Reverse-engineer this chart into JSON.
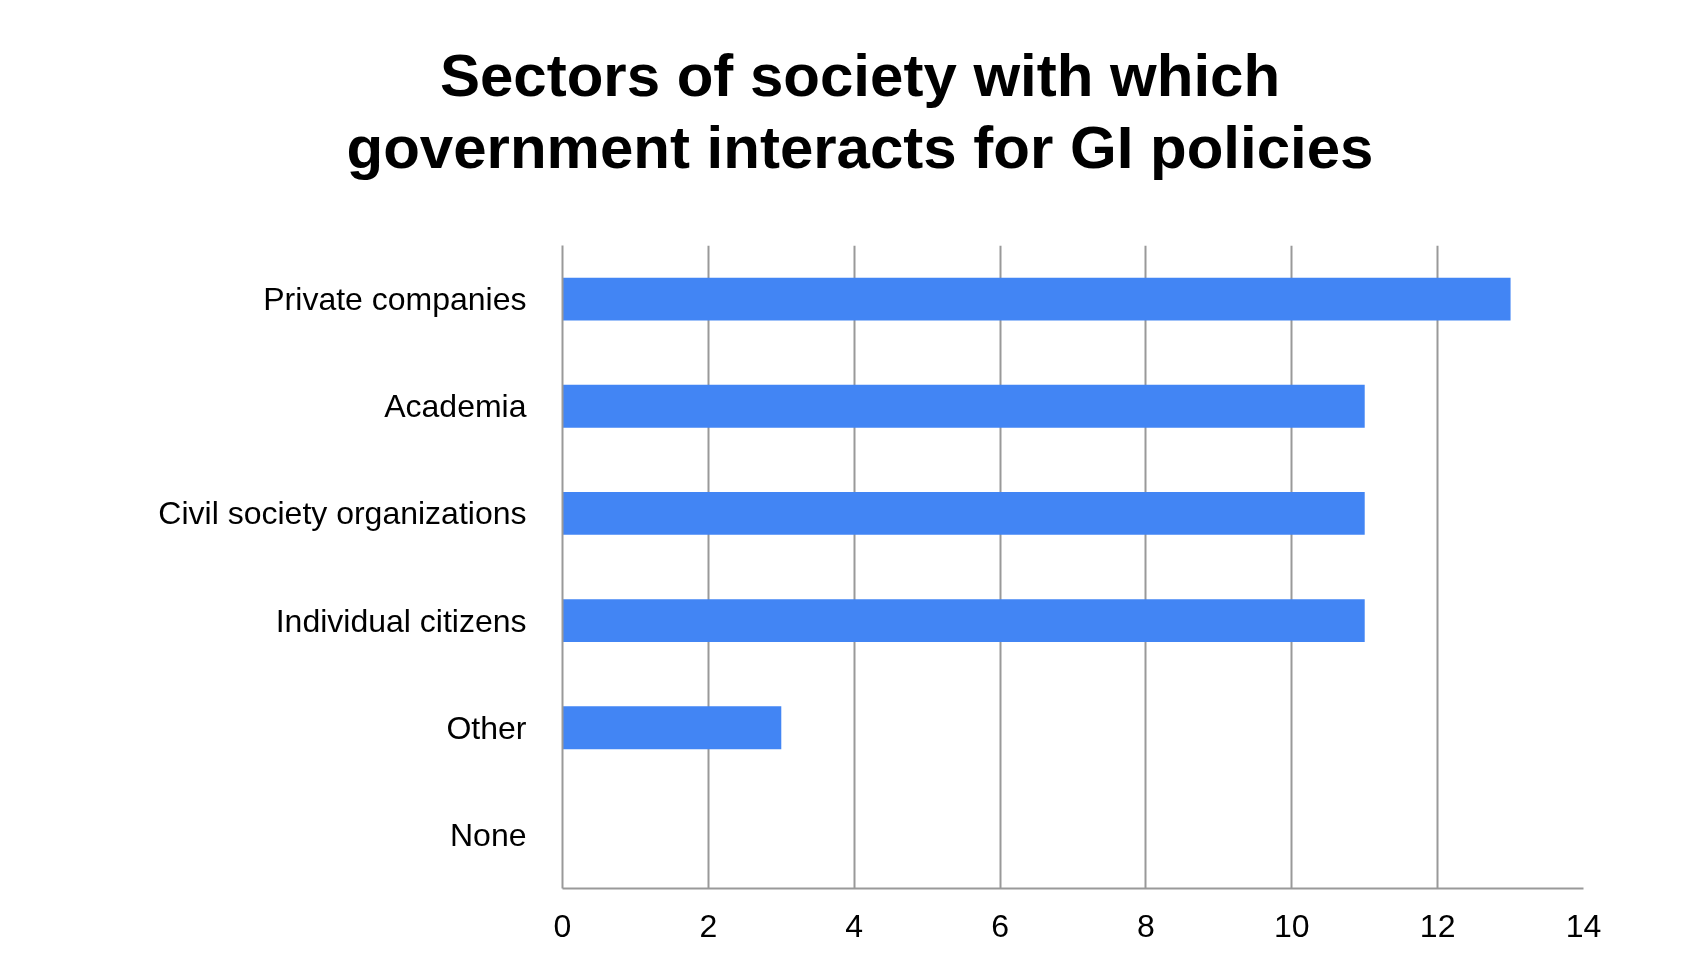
{
  "chart_data": {
    "type": "bar",
    "orientation": "horizontal",
    "title": "Sectors of society with which\ngovernment interacts for GI policies",
    "categories": [
      "Private companies",
      "Academia",
      "Civil society organizations",
      "Individual citizens",
      "Other",
      "None"
    ],
    "values": [
      13,
      11,
      11,
      11,
      3,
      0
    ],
    "color": "#4285f4",
    "xlim": [
      0,
      14
    ],
    "xticks": [
      0,
      2,
      4,
      6,
      8,
      10,
      12,
      14
    ],
    "grid": "x"
  }
}
